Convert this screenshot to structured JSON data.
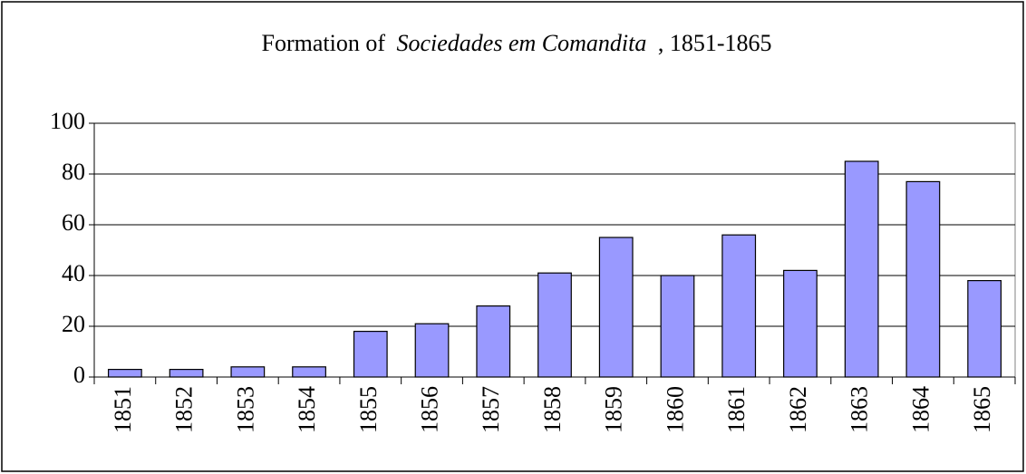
{
  "chart_data": {
    "type": "bar",
    "title": [
      "Formation of",
      "Sociedades em Comandita",
      ", 1851-1865"
    ],
    "categories": [
      "1851",
      "1852",
      "1853",
      "1854",
      "1855",
      "1856",
      "1857",
      "1858",
      "1859",
      "1860",
      "1861",
      "1862",
      "1863",
      "1864",
      "1865"
    ],
    "values": [
      3,
      3,
      4,
      4,
      18,
      21,
      28,
      41,
      55,
      40,
      56,
      42,
      85,
      77,
      38
    ],
    "color": "#9999ff",
    "ylim": [
      0,
      100
    ],
    "yticks": [
      0,
      20,
      40,
      60,
      80,
      100
    ],
    "grid": true
  }
}
